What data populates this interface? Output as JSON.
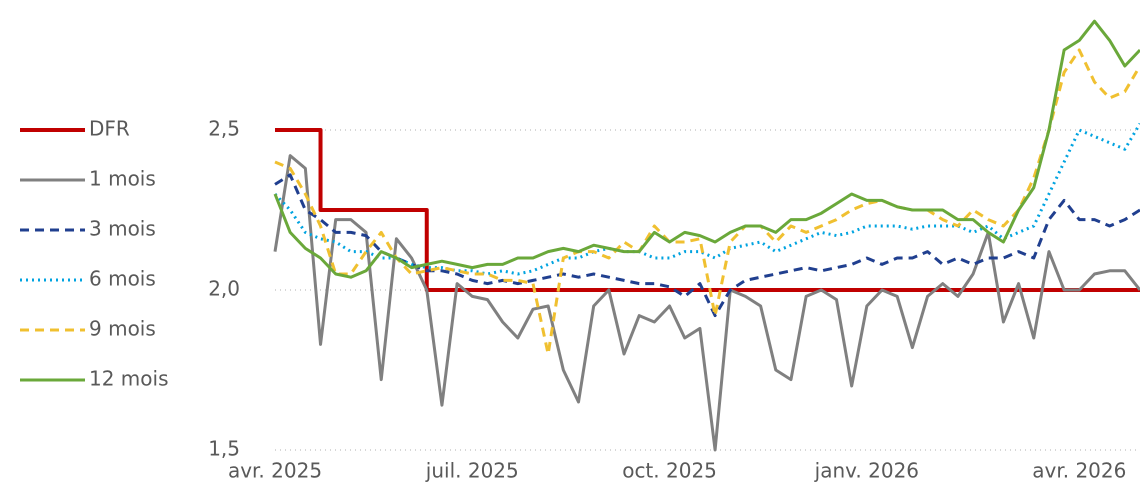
{
  "chart_data": {
    "type": "line",
    "categories": [
      "avr. 2025",
      null,
      null,
      null,
      null,
      null,
      null,
      null,
      null,
      null,
      null,
      null,
      null,
      "juil. 2025",
      null,
      null,
      null,
      null,
      null,
      null,
      null,
      null,
      null,
      null,
      null,
      null,
      "oct. 2025",
      null,
      null,
      null,
      null,
      null,
      null,
      null,
      null,
      null,
      null,
      null,
      null,
      "janv. 2026",
      null,
      null,
      null,
      null,
      null,
      null,
      null,
      null,
      null,
      null,
      null,
      null,
      null,
      "avr. 2026",
      null,
      null,
      null,
      null
    ],
    "ylim": [
      1.5,
      2.85
    ],
    "yticks": [
      {
        "value": 1.5,
        "label": "1,5"
      },
      {
        "value": 2.0,
        "label": "2,0"
      },
      {
        "value": 2.5,
        "label": "2,5"
      }
    ],
    "grid": true,
    "legend": "left",
    "series": [
      {
        "name": "DFR",
        "color": "#c00000",
        "style": "solid",
        "step": true,
        "values": [
          2.5,
          2.5,
          2.5,
          2.25,
          2.25,
          2.25,
          2.25,
          2.25,
          2.25,
          2.25,
          2.0,
          2.0,
          2.0,
          2.0,
          2.0,
          2.0,
          2.0,
          2.0,
          2.0,
          2.0,
          2.0,
          2.0,
          2.0,
          2.0,
          2.0,
          2.0,
          2.0,
          2.0,
          2.0,
          2.0,
          2.0,
          2.0,
          2.0,
          2.0,
          2.0,
          2.0,
          2.0,
          2.0,
          2.0,
          2.0,
          2.0,
          2.0,
          2.0,
          2.0,
          2.0,
          2.0,
          2.0,
          2.0,
          2.0,
          2.0,
          2.0,
          2.0,
          2.0,
          2.0,
          2.0,
          2.0,
          2.0,
          2.0
        ]
      },
      {
        "name": "1 mois",
        "color": "#808080",
        "style": "solid",
        "values": [
          2.12,
          2.42,
          2.38,
          1.83,
          2.22,
          2.22,
          2.18,
          1.72,
          2.16,
          2.1,
          2.0,
          1.64,
          2.02,
          1.98,
          1.97,
          1.9,
          1.85,
          1.94,
          1.95,
          1.75,
          1.65,
          1.95,
          2.0,
          1.8,
          1.92,
          1.9,
          1.95,
          1.85,
          1.88,
          1.5,
          2.0,
          1.98,
          1.95,
          1.75,
          1.72,
          1.98,
          2.0,
          1.97,
          1.7,
          1.95,
          2.0,
          1.98,
          1.82,
          1.98,
          2.02,
          1.98,
          2.05,
          2.18,
          1.9,
          2.02,
          1.85,
          2.12,
          2.0,
          2.0,
          2.05,
          2.06,
          2.06,
          2.0
        ]
      },
      {
        "name": "3 mois",
        "color": "#203f8f",
        "style": "dashed",
        "values": [
          2.33,
          2.36,
          2.25,
          2.22,
          2.18,
          2.18,
          2.17,
          2.12,
          2.1,
          2.08,
          2.06,
          2.06,
          2.05,
          2.03,
          2.02,
          2.03,
          2.02,
          2.03,
          2.04,
          2.05,
          2.04,
          2.05,
          2.04,
          2.03,
          2.02,
          2.02,
          2.01,
          1.98,
          2.02,
          1.92,
          2.0,
          2.03,
          2.04,
          2.05,
          2.06,
          2.07,
          2.06,
          2.07,
          2.08,
          2.1,
          2.08,
          2.1,
          2.1,
          2.12,
          2.08,
          2.1,
          2.08,
          2.1,
          2.1,
          2.12,
          2.1,
          2.22,
          2.28,
          2.22,
          2.22,
          2.2,
          2.22,
          2.25
        ]
      },
      {
        "name": "6 mois",
        "color": "#00a3e0",
        "style": "dotted",
        "values": [
          2.3,
          2.25,
          2.18,
          2.16,
          2.15,
          2.12,
          2.12,
          2.1,
          2.1,
          2.08,
          2.07,
          2.07,
          2.06,
          2.06,
          2.05,
          2.06,
          2.05,
          2.06,
          2.08,
          2.1,
          2.1,
          2.12,
          2.13,
          2.12,
          2.12,
          2.1,
          2.1,
          2.12,
          2.12,
          2.1,
          2.13,
          2.14,
          2.15,
          2.12,
          2.14,
          2.16,
          2.18,
          2.17,
          2.18,
          2.2,
          2.2,
          2.2,
          2.19,
          2.2,
          2.2,
          2.2,
          2.18,
          2.2,
          2.16,
          2.18,
          2.2,
          2.3,
          2.4,
          2.5,
          2.48,
          2.46,
          2.44,
          2.52
        ]
      },
      {
        "name": "9 mois",
        "color": "#f0c030",
        "style": "dashed",
        "values": [
          2.4,
          2.38,
          2.3,
          2.2,
          2.05,
          2.05,
          2.12,
          2.18,
          2.1,
          2.05,
          2.06,
          2.07,
          2.06,
          2.05,
          2.05,
          2.03,
          2.03,
          2.02,
          1.8,
          2.1,
          2.12,
          2.12,
          2.1,
          2.15,
          2.12,
          2.2,
          2.15,
          2.15,
          2.16,
          1.92,
          2.15,
          2.2,
          2.2,
          2.15,
          2.2,
          2.18,
          2.2,
          2.22,
          2.25,
          2.27,
          2.28,
          2.26,
          2.25,
          2.25,
          2.22,
          2.2,
          2.25,
          2.22,
          2.2,
          2.25,
          2.35,
          2.5,
          2.68,
          2.75,
          2.65,
          2.6,
          2.62,
          2.7
        ]
      },
      {
        "name": "12 mois",
        "color": "#6aa83a",
        "style": "solid",
        "values": [
          2.3,
          2.18,
          2.13,
          2.1,
          2.05,
          2.04,
          2.06,
          2.12,
          2.1,
          2.07,
          2.08,
          2.09,
          2.08,
          2.07,
          2.08,
          2.08,
          2.1,
          2.1,
          2.12,
          2.13,
          2.12,
          2.14,
          2.13,
          2.12,
          2.12,
          2.18,
          2.15,
          2.18,
          2.17,
          2.15,
          2.18,
          2.2,
          2.2,
          2.18,
          2.22,
          2.22,
          2.24,
          2.27,
          2.3,
          2.28,
          2.28,
          2.26,
          2.25,
          2.25,
          2.25,
          2.22,
          2.22,
          2.18,
          2.15,
          2.25,
          2.32,
          2.5,
          2.75,
          2.78,
          2.84,
          2.78,
          2.7,
          2.75
        ]
      }
    ]
  }
}
